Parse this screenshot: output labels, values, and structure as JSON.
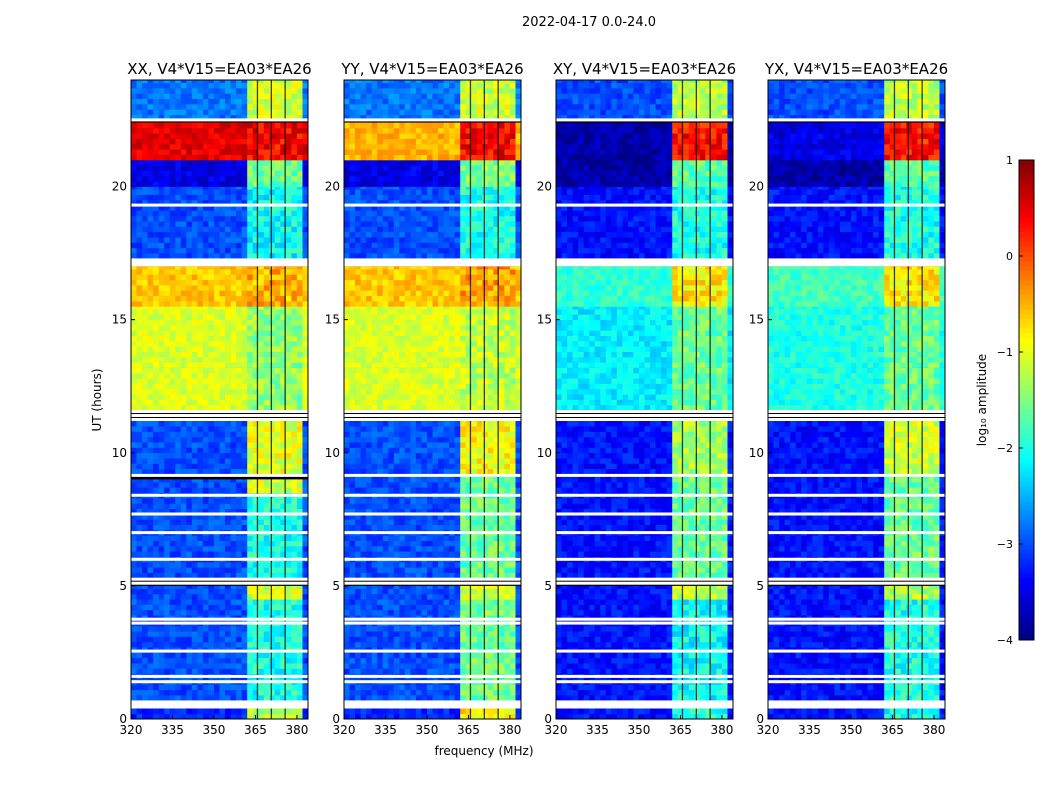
{
  "chart_data": {
    "type": "heatmap",
    "suptitle": "2022-04-17 0.0-24.0",
    "xlabel": "frequency (MHz)",
    "ylabel": "UT (hours)",
    "xlim": [
      320,
      384
    ],
    "ylim": [
      0,
      24
    ],
    "xticks": [
      "320",
      "335",
      "350",
      "365",
      "380"
    ],
    "xtick_values": [
      320,
      335,
      350,
      365,
      380
    ],
    "yticks": [
      "0",
      "5",
      "10",
      "15",
      "20"
    ],
    "ytick_values": [
      0,
      5,
      10,
      15,
      20
    ],
    "rfi_band_mhz": [
      361,
      381
    ],
    "rfi_channel_gaps_mhz": [
      365.5,
      370.5,
      375.5
    ],
    "flagged_hours": [
      0.45,
      0.55,
      1.4,
      1.6,
      2.55,
      3.6,
      3.75,
      5.1,
      5.25,
      6.0,
      7.0,
      7.7,
      8.4,
      9.15,
      11.25,
      11.4,
      11.55,
      17.1,
      17.2,
      19.3,
      22.5
    ],
    "colorbar": {
      "label": "log₁₀ amplitude",
      "range": [
        -4,
        1
      ],
      "colormap": "jet",
      "ticks": [
        "1",
        "0",
        "−1",
        "−2",
        "−3",
        "−4"
      ],
      "tick_values": [
        1,
        0,
        -1,
        -2,
        -3,
        -4
      ]
    },
    "panels": [
      {
        "title": "XX, V4*V15=EA03*EA26",
        "bands": [
          [
            0,
            0.4,
            -3.2,
            -1.3
          ],
          [
            0.7,
            4.5,
            -3.0,
            -2.0
          ],
          [
            4.5,
            5.0,
            -3.0,
            -1.1
          ],
          [
            5.3,
            8.5,
            -3.0,
            -2.0
          ],
          [
            8.5,
            9.0,
            -3.0,
            -1.1
          ],
          [
            9.2,
            11.2,
            -3.0,
            -1.0
          ],
          [
            11.6,
            15.5,
            -1.05,
            -1.4
          ],
          [
            15.5,
            17.0,
            -0.6,
            -0.5
          ],
          [
            17.3,
            20.0,
            -3.0,
            -2.1
          ],
          [
            20.0,
            21.0,
            -3.5,
            -1.6
          ],
          [
            21.0,
            22.4,
            0.5,
            0.4
          ],
          [
            22.5,
            24,
            -2.8,
            -1.1
          ]
        ]
      },
      {
        "title": "YY, V4*V15=EA03*EA26",
        "bands": [
          [
            0,
            0.4,
            -3.2,
            -0.8
          ],
          [
            0.7,
            4.5,
            -3.0,
            -1.6
          ],
          [
            4.5,
            5.0,
            -3.0,
            -1.1
          ],
          [
            5.3,
            9.1,
            -3.0,
            -1.6
          ],
          [
            9.2,
            11.2,
            -3.0,
            -0.9
          ],
          [
            11.6,
            15.5,
            -1.05,
            -1.2
          ],
          [
            15.5,
            17.0,
            -0.6,
            -0.4
          ],
          [
            17.3,
            20.0,
            -3.0,
            -2.0
          ],
          [
            20.0,
            21.0,
            -3.5,
            -1.5
          ],
          [
            21.0,
            22.4,
            -0.5,
            0.4
          ],
          [
            22.5,
            24,
            -2.8,
            -1.1
          ]
        ]
      },
      {
        "title": "XY, V4*V15=EA03*EA26",
        "bands": [
          [
            0,
            0.4,
            -3.3,
            -2.0
          ],
          [
            0.7,
            4.5,
            -3.3,
            -2.1
          ],
          [
            4.5,
            5.0,
            -3.3,
            -1.2
          ],
          [
            5.3,
            9.1,
            -3.3,
            -1.6
          ],
          [
            9.2,
            11.2,
            -3.3,
            -1.3
          ],
          [
            11.6,
            15.5,
            -2.2,
            -1.6
          ],
          [
            15.5,
            17.0,
            -1.9,
            -0.8
          ],
          [
            17.3,
            20.0,
            -3.3,
            -2.0
          ],
          [
            20.0,
            21.0,
            -3.8,
            -1.7
          ],
          [
            21.0,
            22.4,
            -3.8,
            0.3
          ],
          [
            22.5,
            24,
            -3.0,
            -1.2
          ]
        ]
      },
      {
        "title": "YX, V4*V15=EA03*EA26",
        "bands": [
          [
            0,
            0.4,
            -3.3,
            -2.0
          ],
          [
            0.7,
            4.5,
            -3.3,
            -2.0
          ],
          [
            4.5,
            5.0,
            -3.3,
            -1.3
          ],
          [
            5.3,
            9.1,
            -3.3,
            -1.6
          ],
          [
            9.2,
            11.2,
            -3.3,
            -1.1
          ],
          [
            11.6,
            15.5,
            -2.0,
            -1.6
          ],
          [
            15.5,
            17.0,
            -1.8,
            -0.8
          ],
          [
            17.3,
            20.0,
            -3.3,
            -2.0
          ],
          [
            20.0,
            21.0,
            -3.8,
            -1.7
          ],
          [
            21.0,
            22.4,
            -3.5,
            0.3
          ],
          [
            22.5,
            24,
            -3.0,
            -1.2
          ]
        ]
      }
    ]
  }
}
